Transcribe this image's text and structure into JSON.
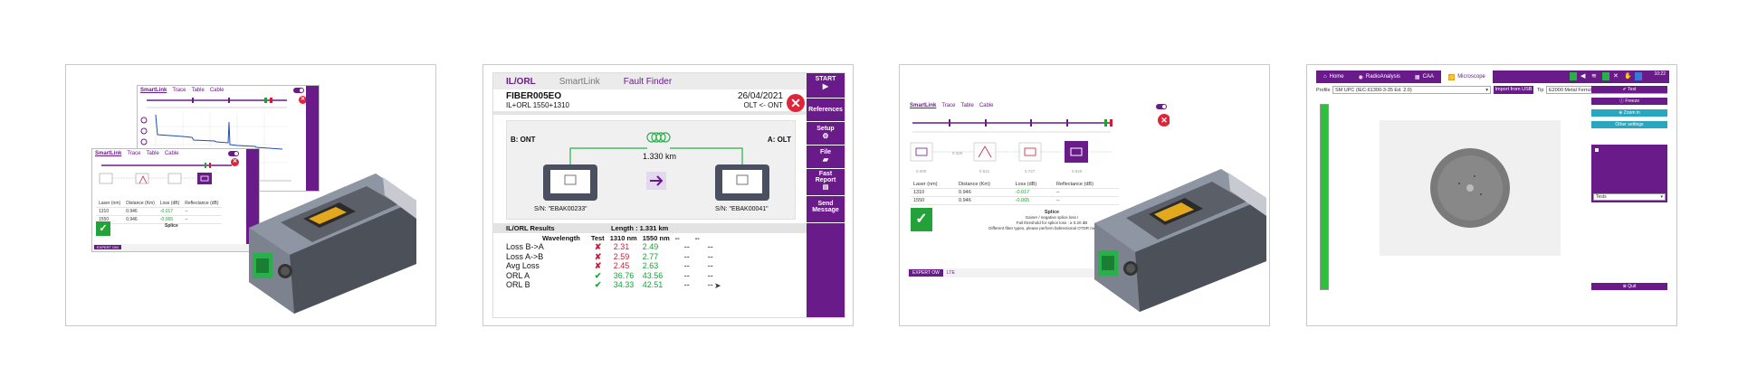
{
  "colors": {
    "brand_purple": "#6a1b8a",
    "pass_green": "#19a33a",
    "fail_red": "#cc1e3a",
    "close_red": "#e0253a"
  },
  "card1": {
    "trace_tabs": [
      "SmartLink",
      "Trace",
      "Table",
      "Cable"
    ],
    "smartlink_tabs": [
      "SmartLink",
      "Trace",
      "Table",
      "Cable"
    ],
    "table_headers": [
      "Laser (nm)",
      "Distance (Km)",
      "Loss (dB)",
      "Reflectance (dB)"
    ],
    "table_rows": [
      [
        "1310",
        "0.946",
        "-0.017",
        "--"
      ],
      [
        "1550",
        "0.946",
        "-0.065",
        "--"
      ]
    ],
    "splice_title": "Splice",
    "footer_label": "EXPERT OW"
  },
  "card2": {
    "tabs": [
      "IL/ORL",
      "SmartLink",
      "Fault Finder"
    ],
    "fiber_name": "FIBER005EO",
    "fiber_sub": "IL+ORL 1550+1310",
    "date": "26/04/2021",
    "direction": "OLT <- ONT",
    "end_b": "B: ONT",
    "end_a": "A: OLT",
    "length": "1.330 km",
    "sn_left": "S/N: \"EBAK00233\"",
    "sn_right": "S/N: \"EBAK00041\"",
    "results_title": "IL/ORL Results",
    "results_length": "Length : 1.331 km",
    "headers": [
      "Wavelength",
      "Test",
      "1310 nm",
      "1550 nm",
      "--",
      "--"
    ],
    "rows": [
      {
        "label": "Loss B->A",
        "status": "fail",
        "v1310": "2.31",
        "v1550": "2.49",
        "c5": "--",
        "c6": "--"
      },
      {
        "label": "Loss A->B",
        "status": "fail",
        "v1310": "2.59",
        "v1550": "2.77",
        "c5": "--",
        "c6": "--"
      },
      {
        "label": "Avg Loss",
        "status": "fail",
        "v1310": "2.45",
        "v1550": "2.63",
        "c5": "--",
        "c6": "--"
      },
      {
        "label": "ORL A",
        "status": "pass",
        "v1310": "36.76",
        "v1550": "43.56",
        "c5": "--",
        "c6": "--"
      },
      {
        "label": "ORL B",
        "status": "pass",
        "v1310": "34.33",
        "v1550": "42.51",
        "c5": "--",
        "c6": "--"
      }
    ],
    "menu": [
      "START",
      "References",
      "Setup",
      "File",
      "Fast Report",
      "Send Message"
    ]
  },
  "card3": {
    "tabs": [
      "SmartLink",
      "Trace",
      "Table",
      "Cable"
    ],
    "event_distances": [
      "0.000",
      "0.325",
      "0.531",
      "0.727",
      "0.946"
    ],
    "table_headers": [
      "Laser (nm)",
      "Distance (Km)",
      "Loss (dB)",
      "Reflectance (dB)"
    ],
    "table_rows": [
      [
        "1310",
        "0.946",
        "-0.017",
        "--"
      ],
      [
        "1550",
        "0.946",
        "-0.065",
        "--"
      ]
    ],
    "splice_title": "Splice",
    "splice_line1": "Gainer / negative splice loss !",
    "splice_line2": "Fail threshold for splice loss : ≥ 0.20 dB",
    "splice_line3": "Different fiber types, please perform bidirectional OTDR measurement",
    "footer_label": "EXPERT OW",
    "footer_label2": "LTE"
  },
  "card4": {
    "tabs": [
      "Home",
      "RadioAnalysis",
      "CAA",
      "Microscope"
    ],
    "time": "10:22",
    "profile_label": "Profile",
    "profile_value": "SM UPC (IEC-61300-3-35 Ed. 2.0)",
    "import_label": "Import from USB",
    "tip_label": "Tip",
    "tip_value": "E2000 Metal Ferrule",
    "btn_test": "Test",
    "btn_freeze": "Freeze",
    "btn_zoom": "Zoom in",
    "btn_other": "Other settings",
    "tests_label": "Tests",
    "btn_quit": "Quit"
  }
}
